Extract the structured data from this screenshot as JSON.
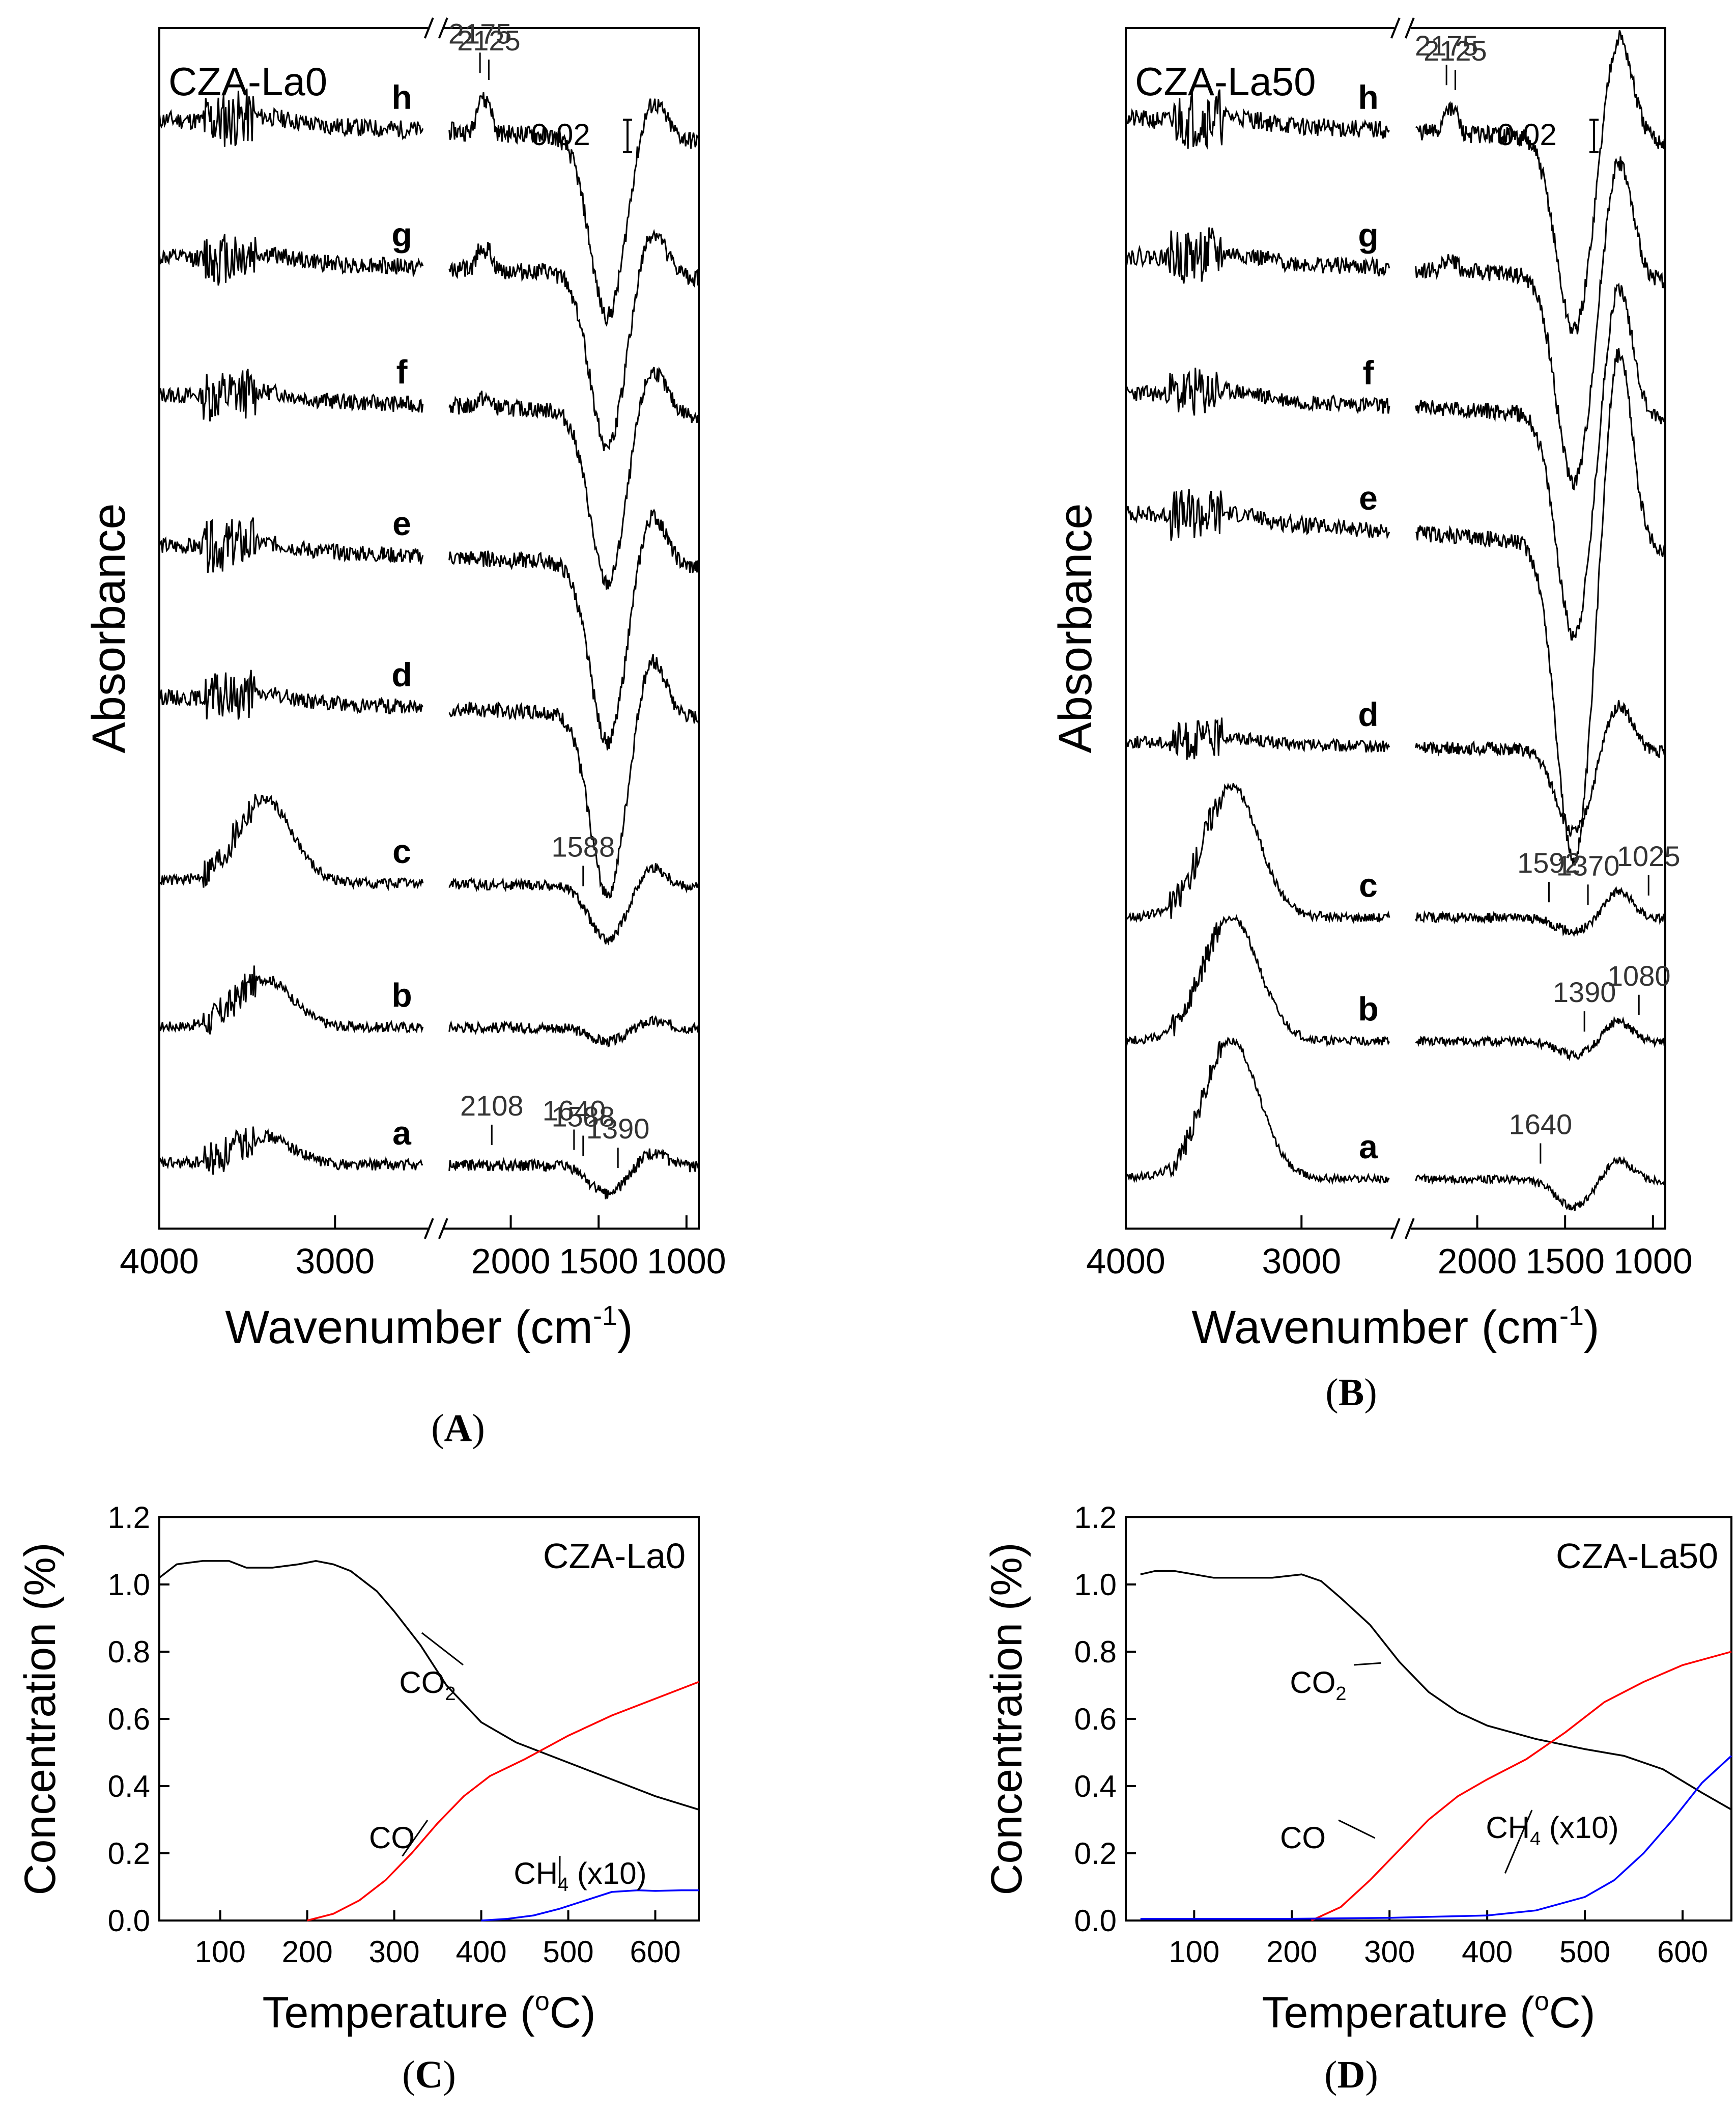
{
  "chart_data": [
    {
      "id": "A",
      "type": "line",
      "panel_label": {
        "open": "(",
        "letter": "A",
        "close": ")"
      },
      "sample_label": "CZA-La0",
      "scale_bar_label": "0.02",
      "xlabel": "Wavenumber (cm",
      "xlabel_sup": "-1",
      "xlabel_close": ")",
      "ylabel": "Absorbance",
      "xlim": [
        4000,
        930
      ],
      "break": [
        2500,
        2350
      ],
      "xticks": [
        "4000",
        "3000",
        "2000",
        "1500",
        "1000"
      ],
      "xtick_values": [
        4000,
        3000,
        2000,
        1500,
        1000
      ],
      "series": [
        {
          "name": "h",
          "offset": 7.8,
          "edge": 0.05,
          "dip": 1.3,
          "hump": 0.3,
          "noise": 0.38,
          "oh": 0.05,
          "co": 0.5,
          "seed": 11
        },
        {
          "name": "g",
          "offset": 6.8,
          "edge": 0.05,
          "dip": 1.25,
          "hump": 0.35,
          "noise": 0.36,
          "oh": 0.05,
          "co": 0.3,
          "seed": 12
        },
        {
          "name": "f",
          "offset": 5.8,
          "edge": 0.05,
          "dip": 1.25,
          "hump": 0.35,
          "noise": 0.34,
          "oh": 0.05,
          "co": 0.12,
          "seed": 13
        },
        {
          "name": "e",
          "offset": 4.7,
          "edge": 0.05,
          "dip": 1.3,
          "hump": 0.4,
          "noise": 0.34,
          "oh": 0.05,
          "co": 0.0,
          "seed": 14
        },
        {
          "name": "d",
          "offset": 3.6,
          "edge": 0.05,
          "dip": 1.3,
          "hump": 0.45,
          "noise": 0.32,
          "oh": 0.05,
          "co": 0.0,
          "seed": 15
        },
        {
          "name": "c",
          "offset": 2.3,
          "edge": 0.05,
          "dip": 0.4,
          "hump": 0.15,
          "noise": 0.22,
          "oh": 0.6,
          "co": 0.0,
          "seed": 16
        },
        {
          "name": "b",
          "offset": 1.3,
          "edge": 0.0,
          "dip": 0.1,
          "hump": 0.05,
          "noise": 0.22,
          "oh": 0.35,
          "co": 0.0,
          "seed": 17
        },
        {
          "name": "a",
          "offset": 0.3,
          "edge": 0.0,
          "dip": 0.2,
          "hump": 0.1,
          "noise": 0.24,
          "oh": 0.2,
          "co": 0.0,
          "seed": 18
        }
      ],
      "annotations": [
        {
          "text": "2175",
          "series": "h",
          "x": 2175
        },
        {
          "text": "2125",
          "series": "h",
          "x": 2125
        },
        {
          "text": "1588",
          "series": "c",
          "x": 1588
        },
        {
          "text": "2108",
          "series": "a",
          "x": 2108
        },
        {
          "text": "1640",
          "series": "a",
          "x": 1640
        },
        {
          "text": "1588",
          "series": "a",
          "x": 1588
        },
        {
          "text": "1390",
          "series": "a",
          "x": 1390
        }
      ]
    },
    {
      "id": "B",
      "type": "line",
      "panel_label": {
        "open": "(",
        "letter": "B",
        "close": ")"
      },
      "sample_label": "CZA-La50",
      "scale_bar_label": "0.02",
      "xlabel": "Wavenumber (cm",
      "xlabel_sup": "-1",
      "xlabel_close": ")",
      "ylabel": "Absorbance",
      "xlim": [
        4000,
        930
      ],
      "break": [
        2500,
        2350
      ],
      "xticks": [
        "4000",
        "3000",
        "2000",
        "1500",
        "1000"
      ],
      "xtick_values": [
        4000,
        3000,
        2000,
        1500,
        1000
      ],
      "series": [
        {
          "name": "h",
          "offset": 7.8,
          "edge": 0.05,
          "dip": 1.4,
          "hump": 0.8,
          "noise": 0.38,
          "oh": 0.05,
          "co": 0.35,
          "seed": 21
        },
        {
          "name": "g",
          "offset": 6.8,
          "edge": 0.05,
          "dip": 1.5,
          "hump": 0.9,
          "noise": 0.36,
          "oh": 0.05,
          "co": 0.15,
          "seed": 22
        },
        {
          "name": "f",
          "offset": 5.8,
          "edge": 0.05,
          "dip": 1.6,
          "hump": 1.0,
          "noise": 0.34,
          "oh": 0.05,
          "co": 0.0,
          "seed": 23
        },
        {
          "name": "e",
          "offset": 4.9,
          "edge": 0.05,
          "dip": 2.3,
          "hump": 1.5,
          "noise": 0.34,
          "oh": 0.05,
          "co": 0.0,
          "seed": 24
        },
        {
          "name": "d",
          "offset": 3.3,
          "edge": 0.05,
          "dip": 0.6,
          "hump": 0.35,
          "noise": 0.26,
          "oh": 0.05,
          "co": 0.0,
          "seed": 25
        },
        {
          "name": "c",
          "offset": 2.1,
          "edge": 0.0,
          "dip": 0.1,
          "hump": 0.2,
          "noise": 0.2,
          "oh": 0.95,
          "co": 0.0,
          "seed": 26
        },
        {
          "name": "b",
          "offset": 1.2,
          "edge": 0.0,
          "dip": 0.1,
          "hump": 0.15,
          "noise": 0.18,
          "oh": 0.9,
          "co": 0.0,
          "seed": 27
        },
        {
          "name": "a",
          "offset": 0.2,
          "edge": 0.0,
          "dip": 0.2,
          "hump": 0.15,
          "noise": 0.16,
          "oh": 1.0,
          "co": 0.0,
          "seed": 28
        }
      ],
      "annotations": [
        {
          "text": "2175",
          "series": "h",
          "x": 2175
        },
        {
          "text": "2125",
          "series": "h",
          "x": 2125
        },
        {
          "text": "1592",
          "series": "c",
          "x": 1592
        },
        {
          "text": "1370",
          "series": "c",
          "x": 1370
        },
        {
          "text": "1025",
          "series": "c",
          "x": 1025
        },
        {
          "text": "1390",
          "series": "b",
          "x": 1390
        },
        {
          "text": "1080",
          "series": "b",
          "x": 1080
        },
        {
          "text": "1640",
          "series": "a",
          "x": 1640
        }
      ]
    },
    {
      "id": "C",
      "type": "line",
      "panel_label": {
        "open": "(",
        "letter": "C",
        "close": ")"
      },
      "sample_label": "CZA-La0",
      "xlabel": "Temperature (",
      "xlabel_sup": "o",
      "xlabel_close": "C)",
      "ylabel": "Concentration (%)",
      "xlim": [
        30,
        650
      ],
      "ylim": [
        0.0,
        1.2
      ],
      "xticks": [
        "100",
        "200",
        "300",
        "400",
        "500",
        "600"
      ],
      "xtick_values": [
        100,
        200,
        300,
        400,
        500,
        600
      ],
      "yticks": [
        "0.0",
        "0.2",
        "0.4",
        "0.6",
        "0.8",
        "1.0",
        "1.2"
      ],
      "ytick_values": [
        0.0,
        0.2,
        0.4,
        0.6,
        0.8,
        1.0,
        1.2
      ],
      "series": [
        {
          "name": "CO2",
          "label": "CO",
          "label_sub": "2",
          "color": "#000000",
          "x": [
            30,
            50,
            80,
            110,
            130,
            160,
            190,
            210,
            230,
            250,
            280,
            300,
            330,
            360,
            400,
            440,
            480,
            520,
            560,
            600,
            650
          ],
          "y": [
            1.02,
            1.06,
            1.07,
            1.07,
            1.05,
            1.05,
            1.06,
            1.07,
            1.06,
            1.04,
            0.98,
            0.92,
            0.82,
            0.7,
            0.59,
            0.53,
            0.49,
            0.45,
            0.41,
            0.37,
            0.33
          ]
        },
        {
          "name": "CO",
          "label": "CO",
          "label_sub": "",
          "color": "#ff0000",
          "x": [
            200,
            230,
            260,
            290,
            320,
            350,
            380,
            410,
            450,
            500,
            550,
            600,
            650
          ],
          "y": [
            0.0,
            0.02,
            0.06,
            0.12,
            0.2,
            0.29,
            0.37,
            0.43,
            0.48,
            0.55,
            0.61,
            0.66,
            0.71
          ]
        },
        {
          "name": "CH4 (x10)",
          "label": "CH",
          "label_sub": "4",
          "label_suffix": " (x10)",
          "color": "#0000ff",
          "x": [
            400,
            430,
            460,
            490,
            520,
            550,
            580,
            600,
            630,
            650
          ],
          "y": [
            0.0,
            0.005,
            0.015,
            0.035,
            0.06,
            0.085,
            0.09,
            0.088,
            0.09,
            0.09
          ]
        }
      ]
    },
    {
      "id": "D",
      "type": "line",
      "panel_label": {
        "open": "(",
        "letter": "D",
        "close": ")"
      },
      "sample_label": "CZA-La50",
      "xlabel": "Temperature (",
      "xlabel_sup": "o",
      "xlabel_close": "C)",
      "ylabel": "Concentration (%)",
      "xlim": [
        30,
        650
      ],
      "ylim": [
        0.0,
        1.2
      ],
      "xticks": [
        "100",
        "200",
        "300",
        "400",
        "500",
        "600"
      ],
      "xtick_values": [
        100,
        200,
        300,
        400,
        500,
        600
      ],
      "yticks": [
        "0.0",
        "0.2",
        "0.4",
        "0.6",
        "0.8",
        "1.0",
        "1.2"
      ],
      "ytick_values": [
        0.0,
        0.2,
        0.4,
        0.6,
        0.8,
        1.0,
        1.2
      ],
      "series": [
        {
          "name": "CO2",
          "label": "CO",
          "label_sub": "2",
          "color": "#000000",
          "x": [
            45,
            60,
            80,
            100,
            120,
            150,
            180,
            210,
            230,
            250,
            280,
            310,
            340,
            370,
            400,
            450,
            500,
            540,
            580,
            620,
            650
          ],
          "y": [
            1.03,
            1.04,
            1.04,
            1.03,
            1.02,
            1.02,
            1.02,
            1.03,
            1.01,
            0.96,
            0.88,
            0.77,
            0.68,
            0.62,
            0.58,
            0.54,
            0.51,
            0.49,
            0.45,
            0.38,
            0.33
          ]
        },
        {
          "name": "CO",
          "label": "CO",
          "label_sub": "",
          "color": "#ff0000",
          "x": [
            220,
            250,
            280,
            310,
            340,
            370,
            400,
            440,
            480,
            520,
            560,
            600,
            650
          ],
          "y": [
            0.0,
            0.04,
            0.12,
            0.21,
            0.3,
            0.37,
            0.42,
            0.48,
            0.56,
            0.65,
            0.71,
            0.76,
            0.8
          ]
        },
        {
          "name": "CH4 (x10)",
          "label": "CH",
          "label_sub": "4",
          "label_suffix": " (x10)",
          "color": "#0000ff",
          "x": [
            45,
            200,
            300,
            400,
            450,
            500,
            530,
            560,
            590,
            620,
            650
          ],
          "y": [
            0.005,
            0.005,
            0.008,
            0.015,
            0.03,
            0.07,
            0.12,
            0.2,
            0.3,
            0.41,
            0.49
          ]
        }
      ]
    }
  ]
}
